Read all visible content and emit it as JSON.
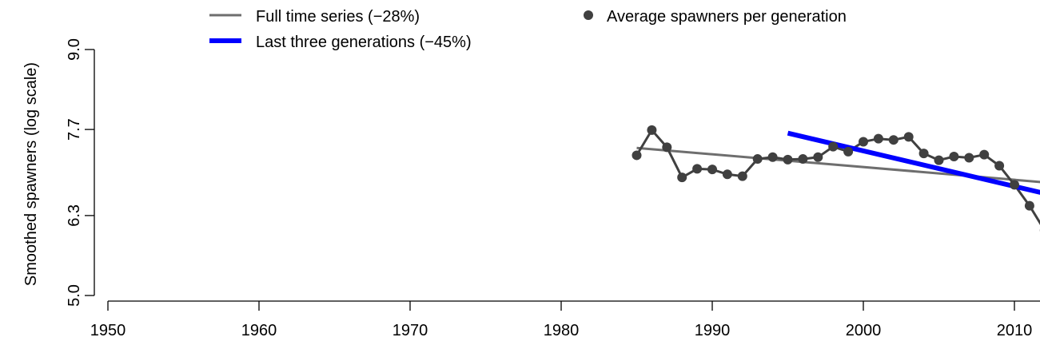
{
  "chart_data": {
    "type": "line",
    "title": "",
    "xlabel": "",
    "ylabel": "Smoothed spawners (log scale)",
    "xlim": [
      1950,
      2012
    ],
    "ylim": [
      5.0,
      9.0
    ],
    "x_ticks": [
      "1950",
      "1960",
      "1970",
      "1980",
      "1990",
      "2000",
      "2010"
    ],
    "y_ticks": [
      "5.0",
      "6.3",
      "7.7",
      "9.0"
    ],
    "legend": {
      "placement": "top",
      "items": [
        {
          "label": "Full time series (−28%)",
          "kind": "line",
          "color": "#6e6e6e"
        },
        {
          "label": "Last three generations (−45%)",
          "kind": "line",
          "color": "#0000ff"
        },
        {
          "label": "Average spawners per generation",
          "kind": "point",
          "color": "#404040"
        }
      ]
    },
    "series": [
      {
        "name": "Average spawners per generation",
        "color": "#404040",
        "x": [
          1985,
          1986,
          1987,
          1988,
          1989,
          1990,
          1991,
          1992,
          1993,
          1994,
          1995,
          1996,
          1997,
          1998,
          1999,
          2000,
          2001,
          2002,
          2003,
          2004,
          2005,
          2006,
          2007,
          2008,
          2009,
          2010,
          2011,
          2012
        ],
        "y": [
          7.28,
          7.69,
          7.41,
          6.92,
          7.06,
          7.05,
          6.97,
          6.94,
          7.22,
          7.25,
          7.21,
          7.22,
          7.25,
          7.42,
          7.34,
          7.5,
          7.55,
          7.53,
          7.58,
          7.31,
          7.2,
          7.26,
          7.24,
          7.29,
          7.11,
          6.8,
          6.46,
          6.06
        ]
      },
      {
        "name": "Full time series (−28%)",
        "color": "#6e6e6e",
        "x": [
          1985,
          2012
        ],
        "y": [
          7.4,
          6.84
        ]
      },
      {
        "name": "Last three generations (−45%)",
        "color": "#0000ff",
        "x": [
          1995,
          2012
        ],
        "y": [
          7.64,
          6.66
        ]
      }
    ]
  }
}
